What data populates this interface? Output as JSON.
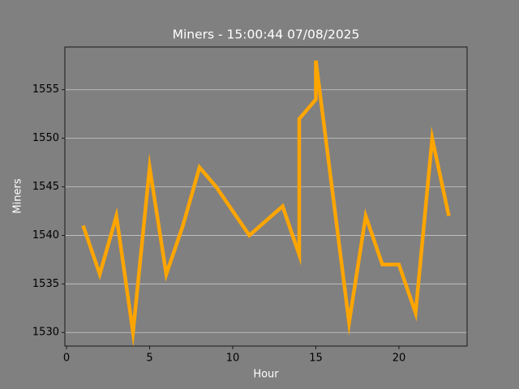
{
  "chart_data": {
    "type": "line",
    "title": "Miners - 15:00:44 07/08/2025",
    "x_label": "Hour",
    "y_label": "Miners",
    "x": [
      1,
      2,
      3,
      4,
      5,
      6,
      7,
      8,
      9,
      10,
      11,
      12,
      13,
      14,
      14,
      15,
      15,
      17,
      18,
      19,
      20,
      21,
      22,
      23
    ],
    "series": [
      {
        "name": "Miners",
        "color": "#ffa500",
        "values": [
          1541,
          1536,
          1542,
          1530,
          1547,
          1536,
          1541,
          1547,
          1545,
          1542.5,
          1540,
          1541.5,
          1543,
          1538,
          1552,
          1554,
          1558,
          1531,
          1542,
          1537,
          1537,
          1532,
          1550,
          1542
        ]
      }
    ],
    "xlim": [
      -0.1,
      24.1
    ],
    "xticks": [
      0,
      5,
      10,
      15,
      20
    ],
    "ylim": [
      1528.6,
      1559.4
    ],
    "yticks": [
      1530,
      1535,
      1540,
      1545,
      1550,
      1555
    ],
    "grid": true
  }
}
